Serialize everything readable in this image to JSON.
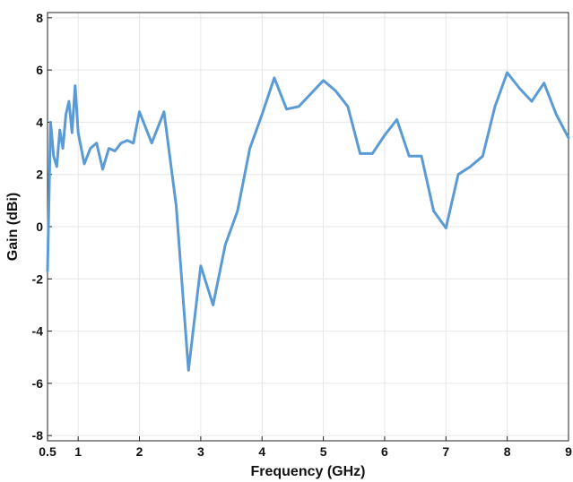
{
  "chart_data": {
    "type": "line",
    "xlabel": "Frequency (GHz)",
    "ylabel": "Gain (dBi)",
    "xlim": [
      0.5,
      9
    ],
    "ylim": [
      -8.2,
      8.2
    ],
    "grid": true,
    "x_ticks": [
      0.5,
      1,
      2,
      3,
      4,
      5,
      6,
      7,
      8,
      9
    ],
    "x_tick_labels": [
      "0.5",
      "1",
      "2",
      "3",
      "4",
      "5",
      "6",
      "7",
      "8",
      "9"
    ],
    "y_ticks": [
      -8,
      -6,
      -4,
      -2,
      0,
      2,
      4,
      6,
      8
    ],
    "y_tick_labels": [
      "-8",
      "-6",
      "-4",
      "-2",
      "0",
      "2",
      "4",
      "6",
      "8"
    ],
    "line_color": "#5b9bd5",
    "series": [
      {
        "x": [
          0.5,
          0.55,
          0.6,
          0.65,
          0.7,
          0.75,
          0.8,
          0.85,
          0.9,
          0.95,
          1.0,
          1.1,
          1.2,
          1.3,
          1.4,
          1.5,
          1.6,
          1.7,
          1.8,
          1.9,
          2.0,
          2.2,
          2.4,
          2.6,
          2.8,
          3.0,
          3.2,
          3.4,
          3.6,
          3.8,
          4.0,
          4.2,
          4.4,
          4.6,
          4.8,
          5.0,
          5.2,
          5.4,
          5.6,
          5.8,
          6.0,
          6.2,
          6.4,
          6.6,
          6.8,
          7.0,
          7.2,
          7.4,
          7.6,
          7.8,
          8.0,
          8.2,
          8.4,
          8.6,
          8.8,
          9.0
        ],
        "y": [
          -1.7,
          4.0,
          2.7,
          2.3,
          3.7,
          3.0,
          4.3,
          4.8,
          3.6,
          5.4,
          3.6,
          2.4,
          3.0,
          3.2,
          2.2,
          3.0,
          2.9,
          3.2,
          3.3,
          3.2,
          4.4,
          3.2,
          4.4,
          0.8,
          -5.5,
          -1.5,
          -3.0,
          -0.7,
          0.6,
          3.0,
          4.3,
          5.7,
          4.5,
          4.6,
          5.1,
          5.6,
          5.2,
          4.6,
          2.8,
          2.8,
          3.5,
          4.1,
          2.7,
          2.7,
          0.6,
          -0.05,
          2.0,
          2.3,
          2.7,
          4.6,
          5.9,
          5.3,
          4.8,
          5.5,
          4.3,
          3.4
        ]
      }
    ]
  }
}
